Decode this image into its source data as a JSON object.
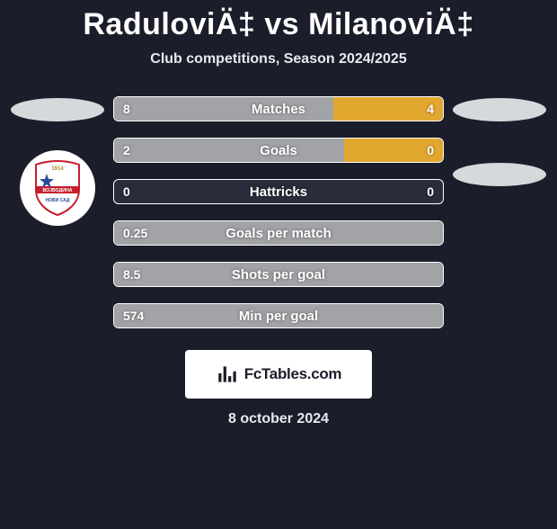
{
  "title": "RaduloviÄ‡ vs MilanoviÄ‡",
  "subtitle": "Club competitions, Season 2024/2025",
  "colors": {
    "bg": "#1b1e2a",
    "bar_bg": "#292c3a",
    "left_fill": "#a2a3a7",
    "right_fill": "#e2a72e",
    "border": "#ffffff",
    "ellipse": "#d6d9db"
  },
  "left_badge": {
    "shield_fill": "#ffffff",
    "shield_border": "#c71f2d",
    "year": "1914",
    "star_color": "#2a4b9b",
    "band_text": "ВОЈВОДИНА",
    "sub_text": "НОВИ САД"
  },
  "rows": [
    {
      "label": "Matches",
      "left_val": "8",
      "right_val": "4",
      "left_pct": 66.7,
      "right_pct": 33.3
    },
    {
      "label": "Goals",
      "left_val": "2",
      "right_val": "0",
      "left_pct": 70.0,
      "right_pct": 30.0
    },
    {
      "label": "Hattricks",
      "left_val": "0",
      "right_val": "0",
      "left_pct": 0.0,
      "right_pct": 0.0
    },
    {
      "label": "Goals per match",
      "left_val": "0.25",
      "right_val": "",
      "left_pct": 100.0,
      "right_pct": 0.0
    },
    {
      "label": "Shots per goal",
      "left_val": "8.5",
      "right_val": "",
      "left_pct": 100.0,
      "right_pct": 0.0
    },
    {
      "label": "Min per goal",
      "left_val": "574",
      "right_val": "",
      "left_pct": 100.0,
      "right_pct": 0.0
    }
  ],
  "footer": {
    "brand": "FcTables.com",
    "date": "8 october 2024"
  }
}
